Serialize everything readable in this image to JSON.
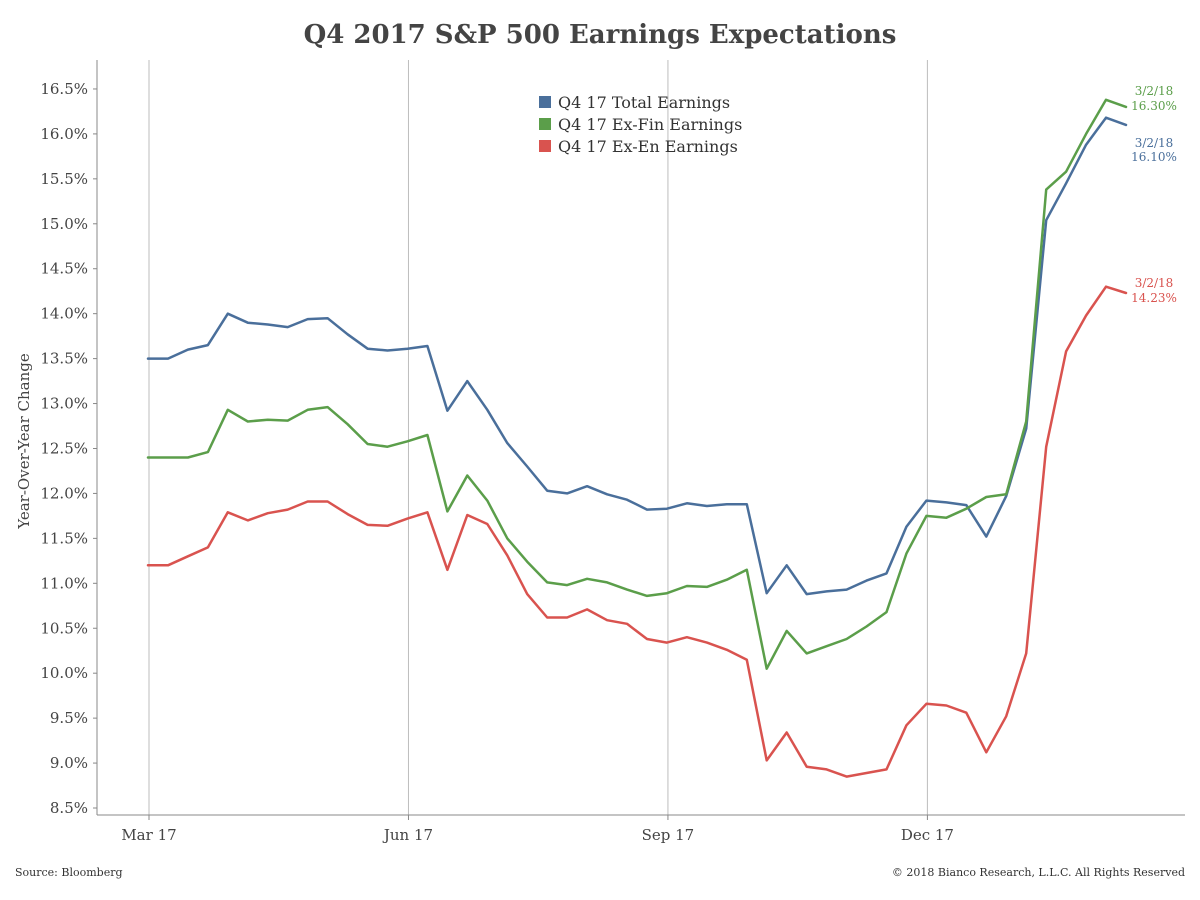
{
  "chart_data": {
    "type": "line",
    "title": "Q4 2017 S&P 500 Earnings Expectations",
    "ylabel": "Year-Over-Year Change",
    "xlabel": "",
    "ylim": [
      8.4,
      16.8
    ],
    "y_ticks": [
      "8.5%",
      "9.0%",
      "9.5%",
      "10.0%",
      "10.5%",
      "11.0%",
      "11.5%",
      "12.0%",
      "12.5%",
      "13.0%",
      "13.5%",
      "14.0%",
      "14.5%",
      "15.0%",
      "15.5%",
      "16.0%",
      "16.5%"
    ],
    "y_tick_values": [
      8.5,
      9.0,
      9.5,
      10.0,
      10.5,
      11.0,
      11.5,
      12.0,
      12.5,
      13.0,
      13.5,
      14.0,
      14.5,
      15.0,
      15.5,
      16.0,
      16.5
    ],
    "x_ticks": [
      "Mar 17",
      "Jun 17",
      "Sep 17",
      "Dec 17"
    ],
    "x_tick_positions": [
      1,
      14,
      27,
      40
    ],
    "x_range": [
      -1.1,
      50.8
    ],
    "grid": "vertical lines at x ticks",
    "legend_position": "top-center",
    "series": [
      {
        "name": "Q4 17 Total Earnings",
        "color": "#4a6f9b",
        "values": [
          13.5,
          13.5,
          13.6,
          13.65,
          14.0,
          13.9,
          13.88,
          13.85,
          13.94,
          13.95,
          13.77,
          13.61,
          13.59,
          13.61,
          13.64,
          12.92,
          13.25,
          12.93,
          12.56,
          12.3,
          12.03,
          12.0,
          12.08,
          11.99,
          11.93,
          11.82,
          11.83,
          11.89,
          11.86,
          11.88,
          11.88,
          10.89,
          11.2,
          10.88,
          10.91,
          10.93,
          11.03,
          11.11,
          11.63,
          11.92,
          11.9,
          11.87,
          11.52,
          11.97,
          12.72,
          15.04,
          15.45,
          15.88,
          16.18,
          16.1
        ],
        "end_label_date": "3/2/18",
        "end_label_value": "16.10%"
      },
      {
        "name": "Q4 17 Ex-Fin Earnings",
        "color": "#5b9e4a",
        "values": [
          12.4,
          12.4,
          12.4,
          12.46,
          12.93,
          12.8,
          12.82,
          12.81,
          12.93,
          12.96,
          12.77,
          12.55,
          12.52,
          12.58,
          12.65,
          11.8,
          12.2,
          11.92,
          11.5,
          11.24,
          11.01,
          10.98,
          11.05,
          11.01,
          10.93,
          10.86,
          10.89,
          10.97,
          10.96,
          11.04,
          11.15,
          10.05,
          10.47,
          10.22,
          10.3,
          10.38,
          10.52,
          10.68,
          11.33,
          11.75,
          11.73,
          11.83,
          11.96,
          11.99,
          12.8,
          15.38,
          15.58,
          16.0,
          16.38,
          16.3
        ],
        "end_label_date": "3/2/18",
        "end_label_value": "16.30%"
      },
      {
        "name": "Q4 17 Ex-En Earnings",
        "color": "#d9534f",
        "values": [
          11.2,
          11.2,
          11.3,
          11.4,
          11.79,
          11.7,
          11.78,
          11.82,
          11.91,
          11.91,
          11.77,
          11.65,
          11.64,
          11.72,
          11.79,
          11.15,
          11.76,
          11.66,
          11.31,
          10.88,
          10.62,
          10.62,
          10.71,
          10.59,
          10.55,
          10.38,
          10.34,
          10.4,
          10.34,
          10.26,
          10.15,
          9.03,
          9.34,
          8.96,
          8.93,
          8.85,
          8.89,
          8.93,
          9.42,
          9.66,
          9.64,
          9.56,
          9.12,
          9.52,
          10.22,
          12.52,
          13.58,
          13.98,
          14.3,
          14.23
        ],
        "end_label_date": "3/2/18",
        "end_label_value": "14.23%"
      }
    ]
  },
  "footer": {
    "source": "Source: Bloomberg",
    "copyright": "© 2018 Bianco Research, L.L.C. All Rights Reserved"
  }
}
